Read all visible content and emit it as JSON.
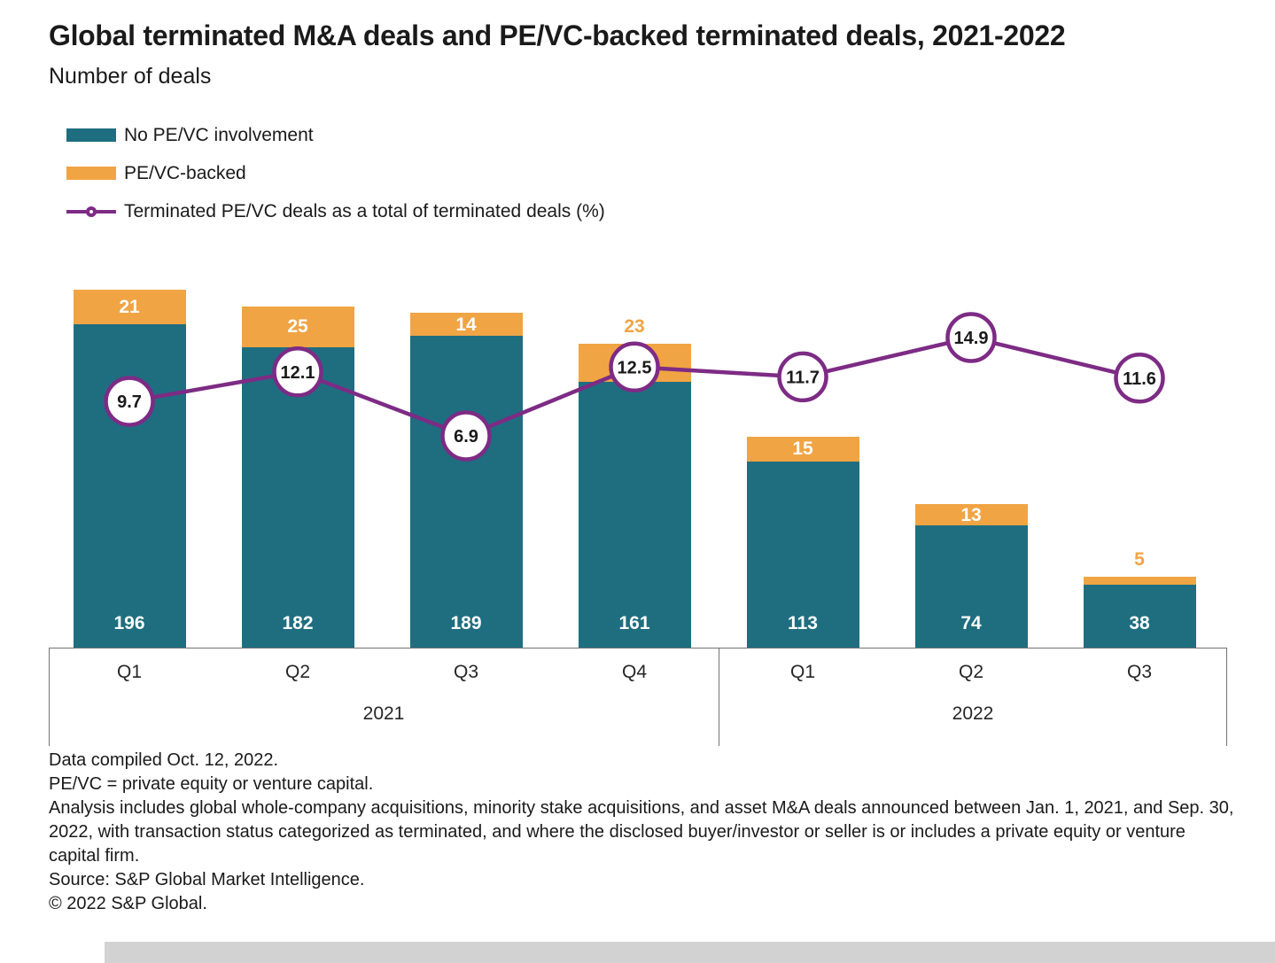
{
  "title": "Global terminated M&A deals and PE/VC-backed terminated deals, 2021-2022",
  "subtitle": "Number of deals",
  "colors": {
    "teal": "#1e6e80",
    "orange": "#f0a444",
    "purple": "#7d2b85"
  },
  "legend": [
    {
      "label": "No PE/VC involvement",
      "color": "#1e6e80"
    },
    {
      "label": "PE/VC-backed",
      "color": "#f0a444"
    },
    {
      "label": "Terminated PE/VC deals as a total of terminated deals (%)",
      "color": "#7d2b85"
    }
  ],
  "chart_data": {
    "type": "bar",
    "stacked": true,
    "categories": [
      "Q1",
      "Q2",
      "Q3",
      "Q4",
      "Q1",
      "Q2",
      "Q3"
    ],
    "year_groups": [
      {
        "label": "2021",
        "count": 4
      },
      {
        "label": "2022",
        "count": 3
      }
    ],
    "series": [
      {
        "name": "No PE/VC involvement",
        "type": "bar",
        "color": "#1e6e80",
        "values": [
          196,
          182,
          189,
          161,
          113,
          74,
          38
        ]
      },
      {
        "name": "PE/VC-backed",
        "type": "bar",
        "color": "#f0a444",
        "values": [
          21,
          25,
          14,
          23,
          15,
          13,
          5
        ],
        "label_outside": [
          false,
          false,
          false,
          true,
          false,
          false,
          true
        ]
      },
      {
        "name": "Terminated PE/VC deals as a total of terminated deals (%)",
        "type": "line",
        "color": "#7d2b85",
        "values": [
          9.7,
          12.1,
          6.9,
          12.5,
          11.7,
          14.9,
          11.6
        ]
      }
    ],
    "title": "Global terminated M&A deals and PE/VC-backed terminated deals, 2021-2022",
    "xlabel": "",
    "ylabel": "Number of deals",
    "grid": false,
    "legend_position": "top-left"
  },
  "footnotes": [
    "Data compiled Oct. 12, 2022.",
    "PE/VC = private equity or venture capital.",
    "Analysis includes global whole-company acquisitions, minority stake acquisitions, and asset M&A deals announced between Jan. 1, 2021, and Sep. 30, 2022, with transaction status categorized as terminated, and where the disclosed buyer/investor or seller is or includes a private equity or venture capital firm.",
    "Source: S&P Global Market Intelligence.",
    "© 2022 S&P Global."
  ]
}
